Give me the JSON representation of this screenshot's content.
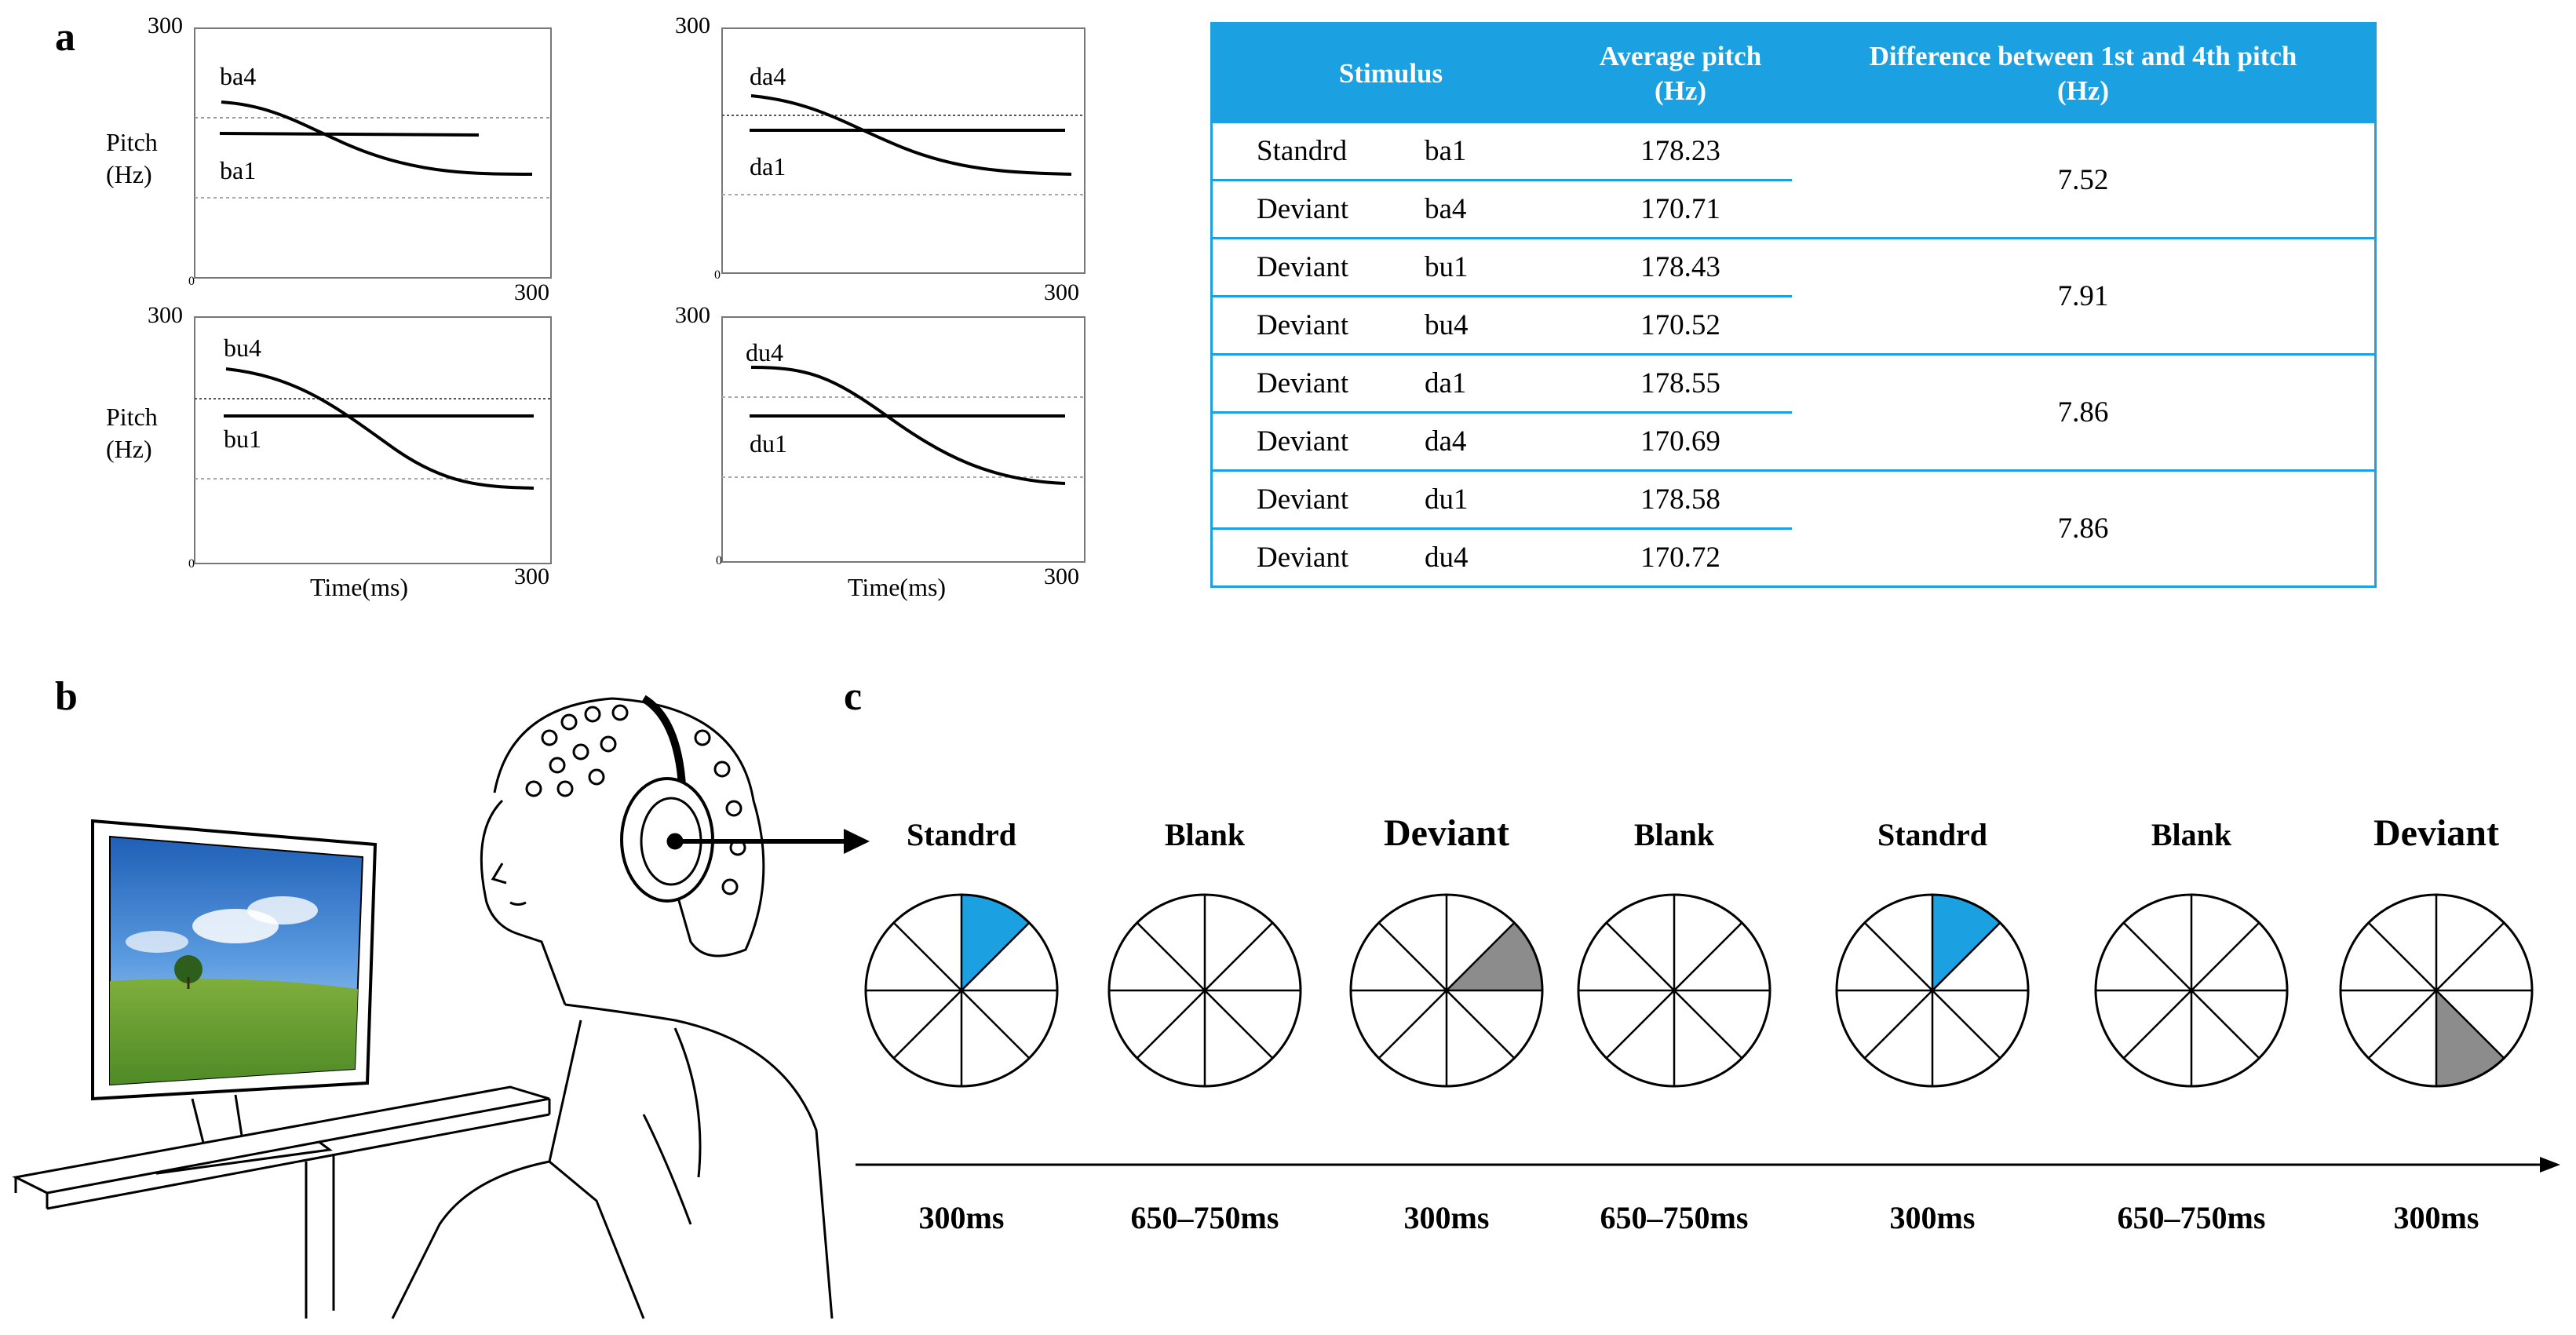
{
  "panels": {
    "a": "a",
    "b": "b",
    "c": "c"
  },
  "pitch_plots": {
    "ymax_label": "300",
    "xmax_label": "300",
    "zero_label": "0",
    "ylabel_line1": "Pitch",
    "ylabel_line2": "(Hz)",
    "xlabel": "Time(ms)",
    "plots": [
      {
        "falling": "ba4",
        "level": "ba1"
      },
      {
        "falling": "da4",
        "level": "da1"
      },
      {
        "falling": "bu4",
        "level": "bu1"
      },
      {
        "falling": "du4",
        "level": "du1"
      }
    ]
  },
  "table": {
    "headers": {
      "stimulus": "Stimulus",
      "avg_line1": "Average pitch",
      "avg_line2": "(Hz)",
      "diff_line1": "Difference between 1st and 4th pitch",
      "diff_line2": "(Hz)"
    },
    "rows": [
      {
        "type": "Standrd",
        "syllable": "ba1",
        "avg": "178.23"
      },
      {
        "type": "Deviant",
        "syllable": "ba4",
        "avg": "170.71"
      },
      {
        "type": "Deviant",
        "syllable": "bu1",
        "avg": "178.43"
      },
      {
        "type": "Deviant",
        "syllable": "bu4",
        "avg": "170.52"
      },
      {
        "type": "Deviant",
        "syllable": "da1",
        "avg": "178.55"
      },
      {
        "type": "Deviant",
        "syllable": "da4",
        "avg": "170.69"
      },
      {
        "type": "Deviant",
        "syllable": "du1",
        "avg": "178.58"
      },
      {
        "type": "Deviant",
        "syllable": "du4",
        "avg": "170.72"
      }
    ],
    "differences": [
      "7.52",
      "7.91",
      "7.86",
      "7.86"
    ]
  },
  "sequence": {
    "items": [
      {
        "label": "Standrd",
        "time": "300ms",
        "kind": "standard"
      },
      {
        "label": "Blank",
        "time": "650–750ms",
        "kind": "blank"
      },
      {
        "label": "Deviant",
        "time": "300ms",
        "kind": "deviant-a"
      },
      {
        "label": "Blank",
        "time": "650–750ms",
        "kind": "blank"
      },
      {
        "label": "Standrd",
        "time": "300ms",
        "kind": "standard"
      },
      {
        "label": "Blank",
        "time": "650–750ms",
        "kind": "blank"
      },
      {
        "label": "Deviant",
        "time": "300ms",
        "kind": "deviant-b"
      }
    ]
  },
  "colors": {
    "table_blue": "#1ba1e2",
    "standard_fill": "#1ba1e2",
    "deviant_fill": "#8c8c8c"
  }
}
